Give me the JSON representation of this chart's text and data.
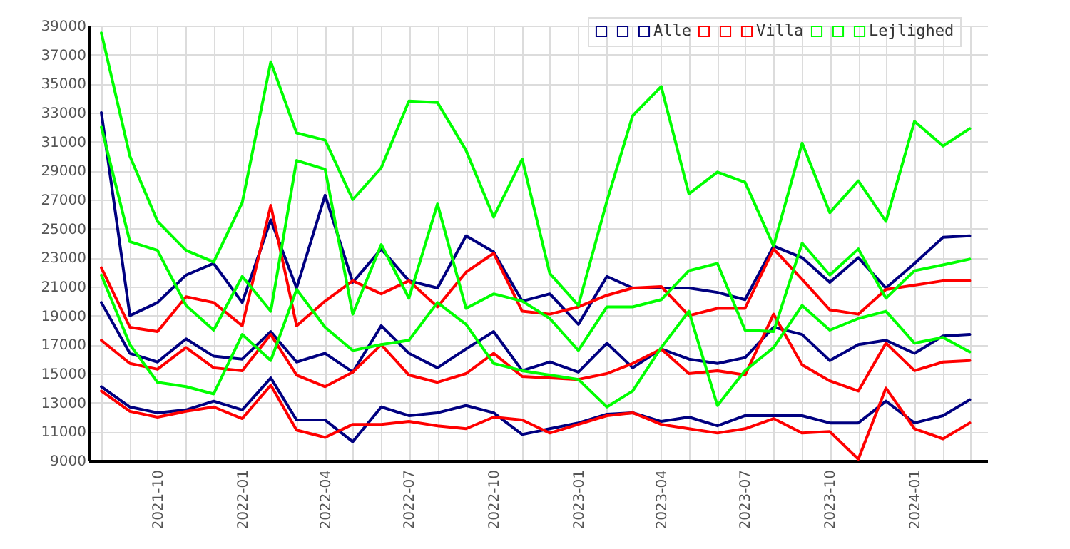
{
  "chart_data": {
    "type": "line",
    "x": [
      "2021-08",
      "2021-09",
      "2021-10",
      "2021-11",
      "2021-12",
      "2022-01",
      "2022-02",
      "2022-03",
      "2022-04",
      "2022-05",
      "2022-06",
      "2022-07",
      "2022-08",
      "2022-09",
      "2022-10",
      "2022-11",
      "2022-12",
      "2023-01",
      "2023-02",
      "2023-03",
      "2023-04",
      "2023-05",
      "2023-06",
      "2023-07",
      "2023-08",
      "2023-09",
      "2023-10",
      "2023-11",
      "2023-12",
      "2024-01",
      "2024-02",
      "2024-03"
    ],
    "series": [
      {
        "name": null,
        "color": "#000080",
        "values": [
          33000,
          19000,
          19900,
          21800,
          22600,
          19900,
          25600,
          20900,
          27300,
          21300,
          23600,
          21400,
          20900,
          24500,
          23400,
          20000,
          20500,
          18400,
          21700,
          20900,
          20900,
          20900,
          20600,
          20100,
          23800,
          23000,
          21300,
          23000,
          20900,
          22600,
          24400,
          24500
        ]
      },
      {
        "name": null,
        "color": "#000080",
        "values": [
          19900,
          16400,
          15800,
          17400,
          16200,
          16000,
          17900,
          15800,
          16400,
          15100,
          18300,
          16400,
          15400,
          16700,
          17900,
          15200,
          15800,
          15100,
          17100,
          15400,
          16700,
          16000,
          15700,
          16100,
          18200,
          17700,
          15900,
          17000,
          17300,
          16400,
          17600,
          17700
        ]
      },
      {
        "name": "Alle",
        "color": "#000080",
        "values": [
          14100,
          12700,
          12300,
          12500,
          13100,
          12500,
          14700,
          11800,
          11800,
          10300,
          12700,
          12100,
          12300,
          12800,
          12300,
          10800,
          11200,
          11600,
          12200,
          12300,
          11700,
          12000,
          11400,
          12100,
          12100,
          12100,
          11600,
          11600,
          13100,
          11600,
          12100,
          13200
        ]
      },
      {
        "name": null,
        "color": "#ff0000",
        "values": [
          22300,
          18200,
          17900,
          20300,
          19900,
          18300,
          26600,
          18300,
          20000,
          21400,
          20500,
          21400,
          19600,
          22000,
          23300,
          19300,
          19100,
          19600,
          20400,
          20900,
          21000,
          19000,
          19500,
          19500,
          23600,
          21500,
          19400,
          19100,
          20800,
          21100,
          21400,
          21400
        ]
      },
      {
        "name": null,
        "color": "#ff0000",
        "values": [
          17300,
          15700,
          15300,
          16800,
          15400,
          15200,
          17700,
          14900,
          14100,
          15100,
          17000,
          14900,
          14400,
          15000,
          16400,
          14800,
          14700,
          14600,
          15000,
          15700,
          16700,
          15000,
          15200,
          14900,
          19100,
          15600,
          14500,
          13800,
          17100,
          15200,
          15800,
          15900
        ]
      },
      {
        "name": "Villa",
        "color": "#ff0000",
        "values": [
          13800,
          12400,
          12000,
          12400,
          12700,
          11900,
          14200,
          11100,
          10600,
          11500,
          11500,
          11700,
          11400,
          11200,
          12000,
          11800,
          10900,
          11500,
          12100,
          12300,
          11500,
          11200,
          10900,
          11200,
          11900,
          10900,
          11000,
          9100,
          14000,
          11200,
          10500,
          11600
        ]
      },
      {
        "name": null,
        "color": "#00ff00",
        "values": [
          38500,
          30000,
          25500,
          23500,
          22700,
          26800,
          36500,
          31600,
          31100,
          27000,
          29200,
          33800,
          33700,
          30400,
          25800,
          29800,
          21900,
          19700,
          26900,
          32800,
          34800,
          27400,
          28900,
          28200,
          23800,
          30900,
          26100,
          28300,
          25500,
          32400,
          30700,
          31900
        ]
      },
      {
        "name": null,
        "color": "#00ff00",
        "values": [
          32000,
          24100,
          23500,
          19700,
          18000,
          21700,
          19300,
          29700,
          29100,
          19100,
          23900,
          20200,
          26700,
          19500,
          20500,
          20000,
          18800,
          16600,
          19600,
          19600,
          20100,
          22100,
          22600,
          18000,
          17900,
          24000,
          21800,
          23600,
          20200,
          22100,
          22500,
          22900
        ]
      },
      {
        "name": "Lejlighed",
        "color": "#00ff00",
        "values": [
          21800,
          17000,
          14400,
          14100,
          13600,
          17700,
          15900,
          20800,
          18200,
          16600,
          17000,
          17300,
          19900,
          18400,
          15700,
          15200,
          14900,
          14600,
          12700,
          13800,
          16800,
          19300,
          12800,
          15200,
          16800,
          19700,
          18000,
          18800,
          19300,
          17100,
          17500,
          16500
        ]
      }
    ],
    "xlim": [
      "2021-07-18",
      "2024-03-20"
    ],
    "xticks": [
      {
        "value": "2021-08",
        "label": null
      },
      {
        "value": "2021-09",
        "label": null
      },
      "2021-10",
      {
        "value": "2021-11",
        "label": null
      },
      {
        "value": "2021-12",
        "label": null
      },
      "2022-01",
      {
        "value": "2022-02",
        "label": null
      },
      {
        "value": "2022-03",
        "label": null
      },
      "2022-04",
      {
        "value": "2022-05",
        "label": null
      },
      {
        "value": "2022-06",
        "label": null
      },
      "2022-07",
      {
        "value": "2022-08",
        "label": null
      },
      {
        "value": "2022-09",
        "label": null
      },
      "2022-10",
      {
        "value": "2022-11",
        "label": null
      },
      {
        "value": "2022-12",
        "label": null
      },
      "2023-01",
      {
        "value": "2023-02",
        "label": null
      },
      {
        "value": "2023-03",
        "label": null
      },
      "2023-04",
      {
        "value": "2023-05",
        "label": null
      },
      {
        "value": "2023-06",
        "label": null
      },
      "2023-07",
      {
        "value": "2023-08",
        "label": null
      },
      {
        "value": "2023-09",
        "label": null
      },
      "2023-10",
      {
        "value": "2023-11",
        "label": null
      },
      {
        "value": "2023-12",
        "label": null
      },
      "2024-01",
      {
        "value": "2024-02",
        "label": null
      },
      {
        "value": "2024-03",
        "label": null
      }
    ],
    "ylim": [
      9000,
      39000
    ],
    "yticks": [
      9000,
      11000,
      13000,
      15000,
      17000,
      19000,
      21000,
      23000,
      25000,
      27000,
      29000,
      31000,
      33000,
      35000,
      37000,
      39000
    ],
    "grid": true,
    "legend": "top right"
  }
}
